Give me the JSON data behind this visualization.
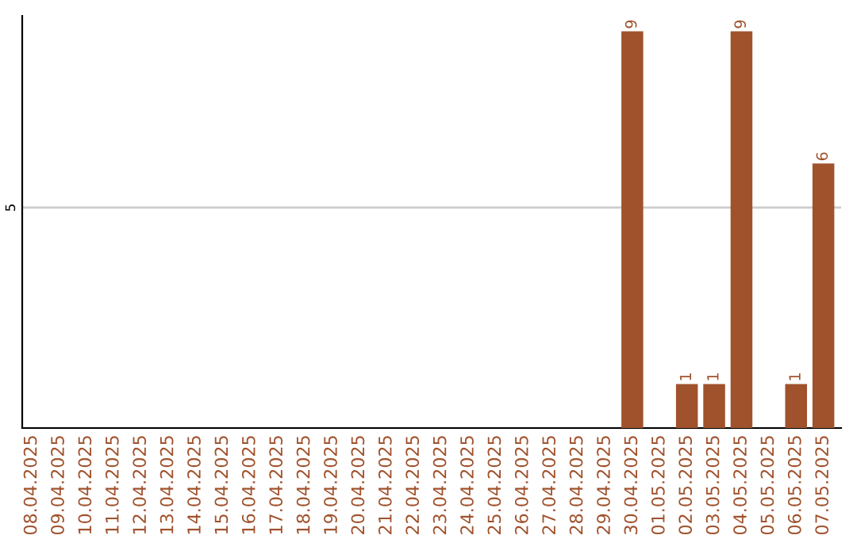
{
  "chart_data": {
    "type": "bar",
    "categories": [
      "08.04.2025",
      "09.04.2025",
      "10.04.2025",
      "11.04.2025",
      "12.04.2025",
      "13.04.2025",
      "14.04.2025",
      "15.04.2025",
      "16.04.2025",
      "17.04.2025",
      "18.04.2025",
      "19.04.2025",
      "20.04.2025",
      "21.04.2025",
      "22.04.2025",
      "23.04.2025",
      "24.04.2025",
      "25.04.2025",
      "26.04.2025",
      "27.04.2025",
      "28.04.2025",
      "29.04.2025",
      "30.04.2025",
      "01.05.2025",
      "02.05.2025",
      "03.05.2025",
      "04.05.2025",
      "05.05.2025",
      "06.05.2025",
      "07.05.2025"
    ],
    "values": [
      null,
      null,
      null,
      null,
      null,
      null,
      null,
      null,
      null,
      null,
      null,
      null,
      null,
      null,
      null,
      null,
      null,
      null,
      null,
      null,
      null,
      null,
      9,
      null,
      1,
      1,
      9,
      null,
      1,
      6
    ],
    "data_labels": true,
    "color": "#a0522d",
    "ylim": [
      0,
      9.35
    ],
    "yticks": [
      5
    ],
    "grid": "y"
  }
}
